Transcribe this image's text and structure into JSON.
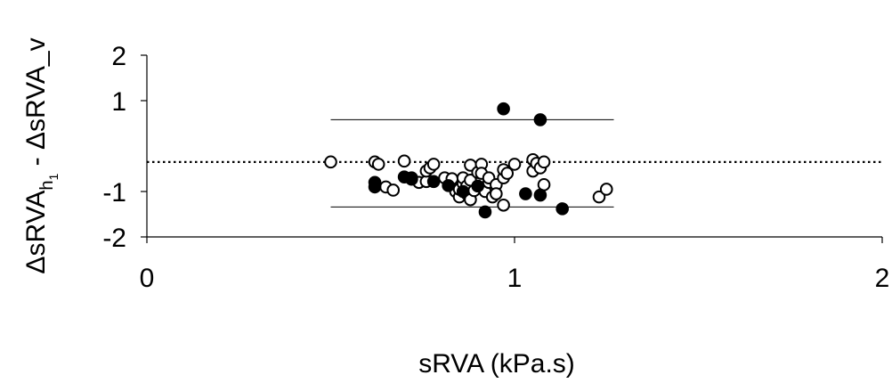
{
  "chart_data": {
    "type": "scatter",
    "title": "",
    "xlabel": "sRVA (kPa.s)",
    "ylabel": "ΔsRVA_h1 - ΔsRVA_v",
    "xlim": [
      0,
      2
    ],
    "ylim": [
      -2,
      2
    ],
    "x_ticks": [
      "0",
      "1",
      "2"
    ],
    "y_ticks": [
      "2",
      "1",
      "-1",
      "-2"
    ],
    "grid": false,
    "legend": "none",
    "colors": {
      "open_marker": "#ffffff",
      "filled_marker": "#000000",
      "stroke": "#000000"
    },
    "mean_line_y": -0.35,
    "limit_lines": {
      "upper": 0.58,
      "lower": -1.34,
      "x_range": [
        0.5,
        1.27
      ]
    },
    "series": [
      {
        "marker": "open",
        "points": [
          [
            0.5,
            -0.35
          ],
          [
            0.62,
            -0.35
          ],
          [
            0.63,
            -0.4
          ],
          [
            0.65,
            -0.9
          ],
          [
            0.67,
            -0.97
          ],
          [
            0.7,
            -0.33
          ],
          [
            0.72,
            -0.7
          ],
          [
            0.74,
            -0.8
          ],
          [
            0.76,
            -0.78
          ],
          [
            0.76,
            -0.55
          ],
          [
            0.77,
            -0.48
          ],
          [
            0.78,
            -0.4
          ],
          [
            0.81,
            -0.7
          ],
          [
            0.83,
            -0.88
          ],
          [
            0.83,
            -0.72
          ],
          [
            0.84,
            -1.0
          ],
          [
            0.85,
            -1.12
          ],
          [
            0.85,
            -0.95
          ],
          [
            0.86,
            -0.82
          ],
          [
            0.86,
            -0.7
          ],
          [
            0.87,
            -1.05
          ],
          [
            0.87,
            -0.88
          ],
          [
            0.88,
            -1.18
          ],
          [
            0.88,
            -0.75
          ],
          [
            0.88,
            -0.42
          ],
          [
            0.89,
            -0.98
          ],
          [
            0.9,
            -0.58
          ],
          [
            0.91,
            -0.4
          ],
          [
            0.91,
            -0.6
          ],
          [
            0.92,
            -1.0
          ],
          [
            0.93,
            -0.8
          ],
          [
            0.93,
            -0.7
          ],
          [
            0.94,
            -1.12
          ],
          [
            0.95,
            -0.85
          ],
          [
            0.95,
            -1.05
          ],
          [
            0.97,
            -1.3
          ],
          [
            0.97,
            -0.7
          ],
          [
            0.97,
            -0.52
          ],
          [
            0.98,
            -0.6
          ],
          [
            1.0,
            -0.4
          ],
          [
            1.05,
            -0.3
          ],
          [
            1.05,
            -0.55
          ],
          [
            1.06,
            -0.38
          ],
          [
            1.07,
            -0.48
          ],
          [
            1.08,
            -0.35
          ],
          [
            1.08,
            -0.85
          ],
          [
            1.23,
            -1.12
          ],
          [
            1.25,
            -0.95
          ]
        ]
      },
      {
        "marker": "filled",
        "points": [
          [
            0.62,
            -0.8
          ],
          [
            0.62,
            -0.9
          ],
          [
            0.7,
            -0.68
          ],
          [
            0.72,
            -0.73
          ],
          [
            0.78,
            -0.78
          ],
          [
            0.82,
            -0.87
          ],
          [
            0.86,
            -1.0
          ],
          [
            0.9,
            -0.88
          ],
          [
            0.92,
            -1.45
          ],
          [
            0.97,
            0.82
          ],
          [
            1.03,
            -1.05
          ],
          [
            1.07,
            0.58
          ],
          [
            1.07,
            -1.08
          ],
          [
            1.13,
            -1.38
          ]
        ]
      }
    ]
  }
}
